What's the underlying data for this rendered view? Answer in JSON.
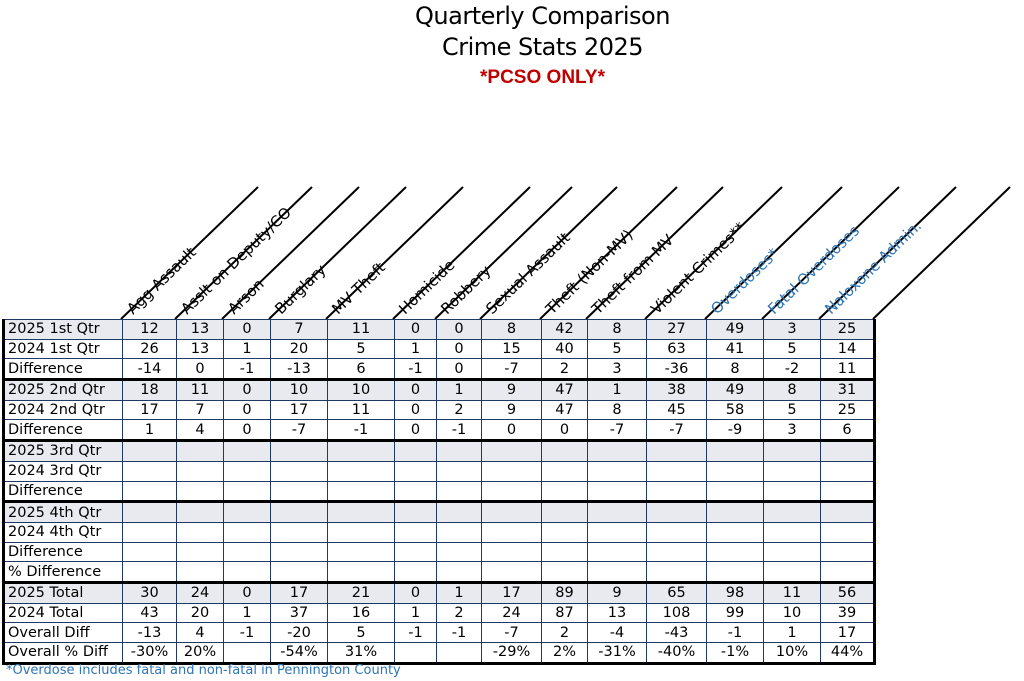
{
  "title_line1": "Quarterly Comparison",
  "title_line2": "Crime Stats 2025",
  "subtitle": "*PCSO ONLY*",
  "colors": {
    "black": "#000000",
    "blue_header": "#2e75b6",
    "red_subtitle": "#c00000",
    "row_shade": "#e8eaef"
  },
  "columns": [
    {
      "label": "Agg Assault",
      "color": "#000000"
    },
    {
      "label": "Asslt on Deputy/CO",
      "color": "#000000"
    },
    {
      "label": "Arson",
      "color": "#000000"
    },
    {
      "label": "Burglary",
      "color": "#000000"
    },
    {
      "label": "MV Theft",
      "color": "#000000"
    },
    {
      "label": "Homicide",
      "color": "#000000"
    },
    {
      "label": "Robbery",
      "color": "#000000"
    },
    {
      "label": "Sexual Assault",
      "color": "#000000"
    },
    {
      "label": "Theft (Non-MV)",
      "color": "#000000"
    },
    {
      "label": "Theft from MV",
      "color": "#000000"
    },
    {
      "label": "Violent Crimes**",
      "color": "#000000"
    },
    {
      "label": "Overdoses*",
      "color": "#2e75b6"
    },
    {
      "label": "Fatal Overdoses",
      "color": "#2e75b6"
    },
    {
      "label": "Naloxone Admin.",
      "color": "#2e75b6"
    }
  ],
  "rows": [
    {
      "label": "2025 1st Qtr",
      "values": [
        "12",
        "13",
        "0",
        "7",
        "11",
        "0",
        "0",
        "8",
        "42",
        "8",
        "27",
        "49",
        "3",
        "25"
      ]
    },
    {
      "label": "2024 1st Qtr",
      "values": [
        "26",
        "13",
        "1",
        "20",
        "5",
        "1",
        "0",
        "15",
        "40",
        "5",
        "63",
        "41",
        "5",
        "14"
      ]
    },
    {
      "label": "Difference",
      "values": [
        "-14",
        "0",
        "-1",
        "-13",
        "6",
        "-1",
        "0",
        "-7",
        "2",
        "3",
        "-36",
        "8",
        "-2",
        "11"
      ]
    },
    {
      "label": "2025 2nd Qtr",
      "values": [
        "18",
        "11",
        "0",
        "10",
        "10",
        "0",
        "1",
        "9",
        "47",
        "1",
        "38",
        "49",
        "8",
        "31"
      ]
    },
    {
      "label": "2024 2nd Qtr",
      "values": [
        "17",
        "7",
        "0",
        "17",
        "11",
        "0",
        "2",
        "9",
        "47",
        "8",
        "45",
        "58",
        "5",
        "25"
      ]
    },
    {
      "label": "Difference",
      "values": [
        "1",
        "4",
        "0",
        "-7",
        "-1",
        "0",
        "-1",
        "0",
        "0",
        "-7",
        "-7",
        "-9",
        "3",
        "6"
      ]
    },
    {
      "label": "2025 3rd Qtr",
      "values": [
        "",
        "",
        "",
        "",
        "",
        "",
        "",
        "",
        "",
        "",
        "",
        "",
        "",
        ""
      ]
    },
    {
      "label": "2024 3rd Qtr",
      "values": [
        "",
        "",
        "",
        "",
        "",
        "",
        "",
        "",
        "",
        "",
        "",
        "",
        "",
        ""
      ]
    },
    {
      "label": "Difference",
      "values": [
        "",
        "",
        "",
        "",
        "",
        "",
        "",
        "",
        "",
        "",
        "",
        "",
        "",
        ""
      ]
    },
    {
      "label": "2025 4th Qtr",
      "values": [
        "",
        "",
        "",
        "",
        "",
        "",
        "",
        "",
        "",
        "",
        "",
        "",
        "",
        ""
      ]
    },
    {
      "label": "2024 4th Qtr",
      "values": [
        "",
        "",
        "",
        "",
        "",
        "",
        "",
        "",
        "",
        "",
        "",
        "",
        "",
        ""
      ]
    },
    {
      "label": "Difference",
      "values": [
        "",
        "",
        "",
        "",
        "",
        "",
        "",
        "",
        "",
        "",
        "",
        "",
        "",
        ""
      ]
    },
    {
      "label": "% Difference",
      "values": [
        "",
        "",
        "",
        "",
        "",
        "",
        "",
        "",
        "",
        "",
        "",
        "",
        "",
        ""
      ]
    },
    {
      "label": "2025 Total",
      "values": [
        "30",
        "24",
        "0",
        "17",
        "21",
        "0",
        "1",
        "17",
        "89",
        "9",
        "65",
        "98",
        "11",
        "56"
      ]
    },
    {
      "label": "2024 Total",
      "values": [
        "43",
        "20",
        "1",
        "37",
        "16",
        "1",
        "2",
        "24",
        "87",
        "13",
        "108",
        "99",
        "10",
        "39"
      ]
    },
    {
      "label": "Overall Diff",
      "values": [
        "-13",
        "4",
        "-1",
        "-20",
        "5",
        "-1",
        "-1",
        "-7",
        "2",
        "-4",
        "-43",
        "-1",
        "1",
        "17"
      ]
    },
    {
      "label": "Overall % Diff",
      "values": [
        "-30%",
        "20%",
        "",
        "-54%",
        "31%",
        "",
        "",
        "-29%",
        "2%",
        "-31%",
        "-40%",
        "-1%",
        "10%",
        "44%"
      ]
    }
  ],
  "footnote": "*Overdose includes fatal and non-fatal in Pennington County"
}
